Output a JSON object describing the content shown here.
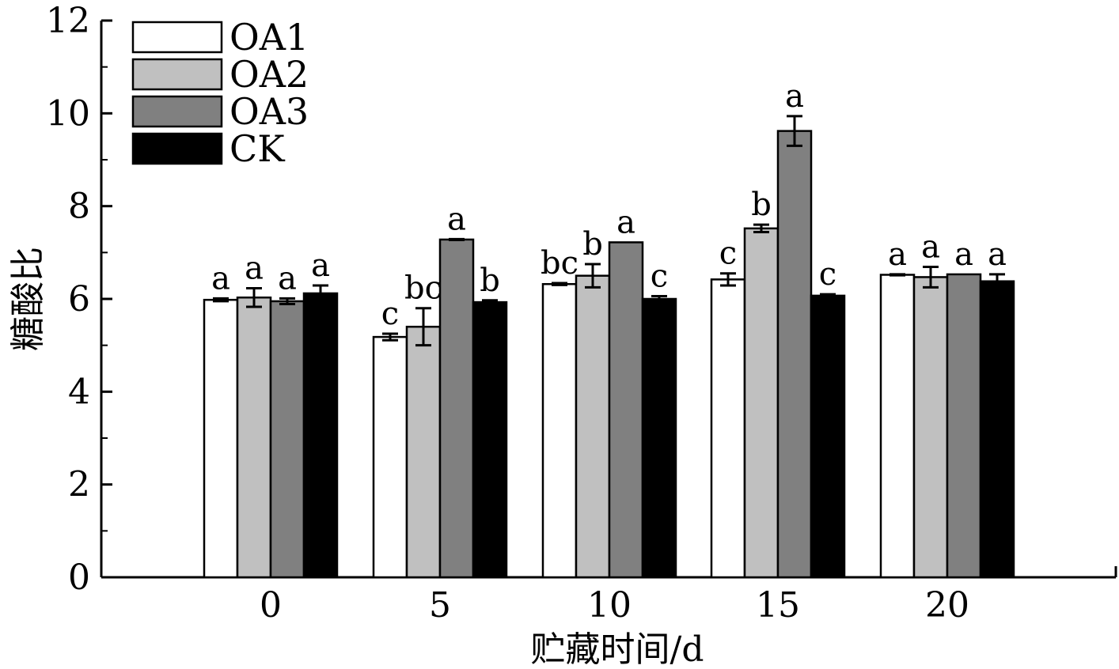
{
  "chart_data": {
    "type": "bar",
    "xlabel": "贮藏时间/d",
    "ylabel": "糖酸比",
    "ylim": [
      0,
      12
    ],
    "yticks": [
      0,
      2,
      4,
      6,
      8,
      10,
      12
    ],
    "categories": [
      "0",
      "5",
      "10",
      "15",
      "20"
    ],
    "legend_position": "top-left",
    "grid": false,
    "series": [
      {
        "name": "OA1",
        "color": "#ffffff",
        "values": [
          5.98,
          5.18,
          6.32,
          6.42,
          6.52
        ],
        "errors": [
          0.03,
          0.07,
          0.02,
          0.13,
          0.01
        ],
        "labels": [
          "a",
          "c",
          "bc",
          "c",
          "a"
        ]
      },
      {
        "name": "OA2",
        "color": "#c0c0c0",
        "values": [
          6.03,
          5.4,
          6.5,
          7.52,
          6.47
        ],
        "errors": [
          0.2,
          0.4,
          0.25,
          0.08,
          0.22
        ],
        "labels": [
          "a",
          "bc",
          "b",
          "b",
          "a"
        ]
      },
      {
        "name": "OA3",
        "color": "#808080",
        "values": [
          5.95,
          7.28,
          7.22,
          9.62,
          6.53
        ],
        "errors": [
          0.06,
          0.01,
          0.0,
          0.32,
          0.0
        ],
        "labels": [
          "a",
          "a",
          "a",
          "a",
          "a"
        ]
      },
      {
        "name": "CK",
        "color": "#000000",
        "values": [
          6.12,
          5.93,
          6.0,
          6.07,
          6.38
        ],
        "errors": [
          0.17,
          0.04,
          0.06,
          0.03,
          0.15
        ],
        "labels": [
          "a",
          "b",
          "c",
          "c",
          "a"
        ]
      }
    ]
  }
}
